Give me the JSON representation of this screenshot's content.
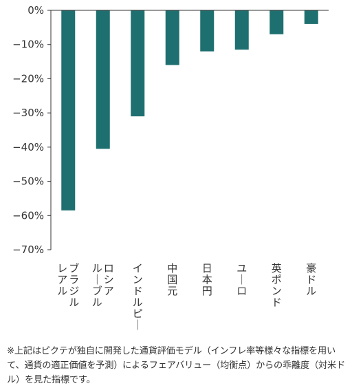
{
  "chart_data": {
    "type": "bar",
    "categories": [
      "ブラジルレアル",
      "ロシアルーブル",
      "インドルピー",
      "中国元",
      "日本円",
      "ユーロ",
      "英ポンド",
      "豪ドル"
    ],
    "category_label_columns": [
      [
        "レアル",
        "ブラジル"
      ],
      [
        "ルーブル",
        "ロシア"
      ],
      [
        "インドルピー"
      ],
      [
        "中国元"
      ],
      [
        "日本円"
      ],
      [
        "ユーロ"
      ],
      [
        "英ポンド"
      ],
      [
        "豪ドル"
      ]
    ],
    "values": [
      -58.5,
      -40.5,
      -31,
      -16,
      -12,
      -11.5,
      -7,
      -4
    ],
    "ylim": [
      -70,
      0
    ],
    "yticks": [
      0,
      -10,
      -20,
      -30,
      -40,
      -50,
      -60,
      -70
    ],
    "ytick_labels": [
      "0%",
      "−10%",
      "−20%",
      "−30%",
      "−40%",
      "−50%",
      "−60%",
      "−70%"
    ],
    "bar_color": "#1e6f6f",
    "axis_color": "#333333",
    "grid": false,
    "title": "",
    "xlabel": "",
    "ylabel": ""
  },
  "footnote": "※上記はピクテが独自に開発した通貨評価モデル（インフレ率等様々な指標を用いて、通貨の適正価値を予測）によるフェアバリュー（均衡点）からの乖離度（対米ドル）を見た指標です。"
}
